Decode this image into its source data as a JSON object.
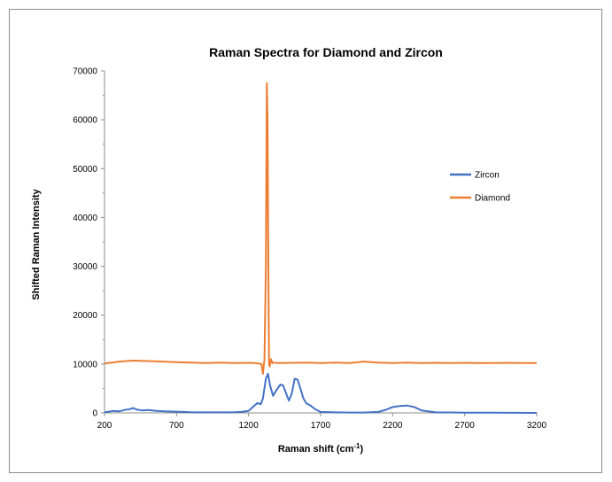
{
  "chart_data": {
    "type": "line",
    "title": "Raman Spectra for Diamond and Zircon",
    "xlabel": "Raman shift (cm",
    "xlabel_sup": "-1",
    "xlabel_end": ")",
    "ylabel": "Shifted Raman Intensity",
    "xlim": [
      200,
      3200
    ],
    "ylim": [
      0,
      70000
    ],
    "xticks": [
      200,
      700,
      1200,
      1700,
      2200,
      2700,
      3200
    ],
    "yticks": [
      0,
      10000,
      20000,
      30000,
      40000,
      50000,
      60000,
      70000
    ],
    "grid": false,
    "legend_position": "right",
    "series": [
      {
        "name": "Zircon",
        "color": "#4472C4",
        "x": [
          200,
          260,
          300,
          340,
          380,
          400,
          420,
          460,
          500,
          560,
          620,
          700,
          800,
          900,
          1000,
          1100,
          1150,
          1200,
          1230,
          1260,
          1285,
          1300,
          1320,
          1335,
          1350,
          1370,
          1390,
          1420,
          1440,
          1460,
          1480,
          1500,
          1520,
          1540,
          1560,
          1580,
          1600,
          1630,
          1660,
          1700,
          1800,
          1900,
          2000,
          2100,
          2150,
          2200,
          2250,
          2300,
          2350,
          2400,
          2500,
          2700,
          2900,
          3200
        ],
        "y": [
          100,
          400,
          300,
          600,
          800,
          1000,
          700,
          500,
          600,
          400,
          300,
          250,
          150,
          100,
          100,
          120,
          200,
          400,
          1200,
          2000,
          1800,
          3000,
          7000,
          8000,
          5500,
          3500,
          4500,
          5800,
          5600,
          4000,
          2500,
          4000,
          7000,
          6800,
          5000,
          3000,
          2000,
          1500,
          800,
          200,
          100,
          80,
          80,
          200,
          600,
          1200,
          1400,
          1500,
          1200,
          500,
          100,
          50,
          50,
          0
        ]
      },
      {
        "name": "Diamond",
        "color": "#ED7D31",
        "x": [
          200,
          300,
          400,
          500,
          600,
          700,
          800,
          900,
          1000,
          1100,
          1200,
          1250,
          1290,
          1300,
          1310,
          1320,
          1327,
          1332,
          1337,
          1342,
          1347,
          1355,
          1365,
          1380,
          1400,
          1500,
          1600,
          1700,
          1800,
          1900,
          2000,
          2100,
          2200,
          2300,
          2400,
          2500,
          2600,
          2700,
          2800,
          2900,
          3000,
          3100,
          3200
        ],
        "y": [
          10100,
          10500,
          10700,
          10600,
          10500,
          10400,
          10300,
          10200,
          10300,
          10200,
          10250,
          10200,
          10000,
          8000,
          11000,
          30000,
          67500,
          60000,
          30000,
          10000,
          9500,
          11000,
          10200,
          10300,
          10200,
          10250,
          10300,
          10200,
          10300,
          10200,
          10500,
          10300,
          10200,
          10300,
          10200,
          10250,
          10200,
          10250,
          10200,
          10200,
          10250,
          10200,
          10200
        ]
      }
    ]
  }
}
